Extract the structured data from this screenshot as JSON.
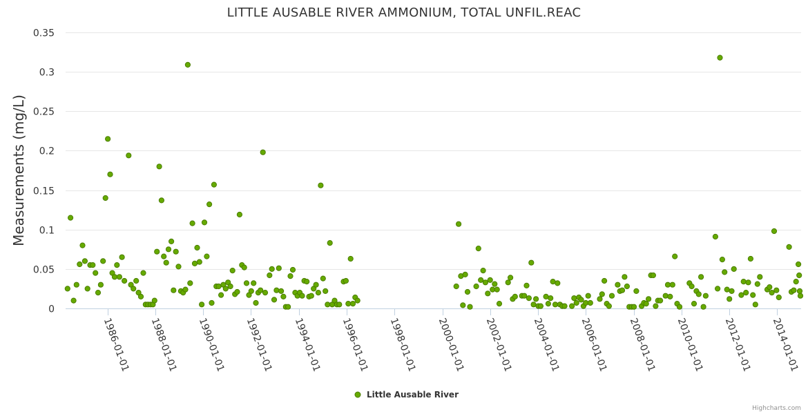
{
  "chart_data": {
    "type": "scatter",
    "title": "LITTLE AUSABLE RIVER AMMONIUM, TOTAL UNFIL.REAC",
    "xlabel": "",
    "ylabel": "Measurements (mg/L)",
    "x_type": "date",
    "xlim": [
      "1984-04-01",
      "2014-12-31"
    ],
    "ylim": [
      0,
      0.35
    ],
    "y_ticks": [
      0,
      0.05,
      0.1,
      0.15,
      0.2,
      0.25,
      0.3,
      0.35
    ],
    "y_tick_labels": [
      "0",
      "0.05",
      "0.1",
      "0.15",
      "0.2",
      "0.25",
      "0.3",
      "0.35"
    ],
    "x_ticks": [
      "1986-01-01",
      "1988-01-01",
      "1990-01-01",
      "1992-01-01",
      "1994-01-01",
      "1996-01-01",
      "1998-01-01",
      "2000-01-01",
      "2002-01-01",
      "2004-01-01",
      "2006-01-01",
      "2008-01-01",
      "2010-01-01",
      "2012-01-01",
      "2014-01-01"
    ],
    "grid": true,
    "legend_position": "bottom-center",
    "series": [
      {
        "name": "Little Ausable River",
        "color": "#66aa00",
        "points": [
          [
            "1984-05-01",
            0.025
          ],
          [
            "1984-06-15",
            0.115
          ],
          [
            "1984-08-01",
            0.01
          ],
          [
            "1984-09-15",
            0.03
          ],
          [
            "1984-11-01",
            0.056
          ],
          [
            "1984-12-15",
            0.08
          ],
          [
            "1985-01-20",
            0.06
          ],
          [
            "1985-03-01",
            0.025
          ],
          [
            "1985-04-10",
            0.055
          ],
          [
            "1985-05-20",
            0.055
          ],
          [
            "1985-07-01",
            0.045
          ],
          [
            "1985-08-10",
            0.02
          ],
          [
            "1985-09-20",
            0.03
          ],
          [
            "1985-10-25",
            0.06
          ],
          [
            "1985-12-01",
            0.14
          ],
          [
            "1986-01-05",
            0.215
          ],
          [
            "1986-02-10",
            0.17
          ],
          [
            "1986-03-15",
            0.045
          ],
          [
            "1986-04-20",
            0.04
          ],
          [
            "1986-05-25",
            0.055
          ],
          [
            "1986-07-01",
            0.04
          ],
          [
            "1986-08-10",
            0.065
          ],
          [
            "1986-09-15",
            0.035
          ],
          [
            "1986-11-20",
            0.194
          ],
          [
            "1986-12-25",
            0.03
          ],
          [
            "1987-02-01",
            0.025
          ],
          [
            "1987-03-15",
            0.035
          ],
          [
            "1987-04-20",
            0.02
          ],
          [
            "1987-05-25",
            0.015
          ],
          [
            "1987-07-01",
            0.045
          ],
          [
            "1987-08-05",
            0.005
          ],
          [
            "1987-09-10",
            0.005
          ],
          [
            "1987-10-20",
            0.005
          ],
          [
            "1987-11-25",
            0.005
          ],
          [
            "1987-12-20",
            0.01
          ],
          [
            "1988-01-25",
            0.072
          ],
          [
            "1988-03-01",
            0.18
          ],
          [
            "1988-04-05",
            0.137
          ],
          [
            "1988-05-10",
            0.066
          ],
          [
            "1988-06-15",
            0.058
          ],
          [
            "1988-07-20",
            0.075
          ],
          [
            "1988-09-01",
            0.085
          ],
          [
            "1988-10-05",
            0.023
          ],
          [
            "1988-11-10",
            0.072
          ],
          [
            "1988-12-20",
            0.053
          ],
          [
            "1989-01-25",
            0.022
          ],
          [
            "1989-03-01",
            0.02
          ],
          [
            "1989-04-05",
            0.024
          ],
          [
            "1989-05-10",
            0.309
          ],
          [
            "1989-06-15",
            0.032
          ],
          [
            "1989-07-20",
            0.108
          ],
          [
            "1989-08-25",
            0.057
          ],
          [
            "1989-10-01",
            0.077
          ],
          [
            "1989-11-05",
            0.059
          ],
          [
            "1989-12-10",
            0.005
          ],
          [
            "1990-01-20",
            0.109
          ],
          [
            "1990-02-25",
            0.066
          ],
          [
            "1990-04-05",
            0.132
          ],
          [
            "1990-05-10",
            0.007
          ],
          [
            "1990-06-15",
            0.157
          ],
          [
            "1990-07-20",
            0.028
          ],
          [
            "1990-08-25",
            0.028
          ],
          [
            "1990-10-01",
            0.017
          ],
          [
            "1990-11-05",
            0.03
          ],
          [
            "1990-12-10",
            0.025
          ],
          [
            "1991-01-15",
            0.033
          ],
          [
            "1991-02-20",
            0.028
          ],
          [
            "1991-03-25",
            0.048
          ],
          [
            "1991-05-01",
            0.018
          ],
          [
            "1991-06-05",
            0.021
          ],
          [
            "1991-07-10",
            0.119
          ],
          [
            "1991-08-15",
            0.055
          ],
          [
            "1991-09-20",
            0.052
          ],
          [
            "1991-10-25",
            0.032
          ],
          [
            "1991-12-01",
            0.017
          ],
          [
            "1992-01-05",
            0.022
          ],
          [
            "1992-02-10",
            0.032
          ],
          [
            "1992-03-15",
            0.007
          ],
          [
            "1992-04-20",
            0.02
          ],
          [
            "1992-05-25",
            0.023
          ],
          [
            "1992-07-01",
            0.198
          ],
          [
            "1992-08-05",
            0.02
          ],
          [
            "1992-10-10",
            0.042
          ],
          [
            "1992-11-15",
            0.05
          ],
          [
            "1992-12-20",
            0.011
          ],
          [
            "1993-01-25",
            0.023
          ],
          [
            "1993-03-01",
            0.051
          ],
          [
            "1993-04-05",
            0.022
          ],
          [
            "1993-05-10",
            0.015
          ],
          [
            "1993-06-15",
            0.002
          ],
          [
            "1993-07-20",
            0.002
          ],
          [
            "1993-08-25",
            0.041
          ],
          [
            "1993-10-01",
            0.049
          ],
          [
            "1993-11-05",
            0.02
          ],
          [
            "1993-12-10",
            0.016
          ],
          [
            "1994-01-15",
            0.02
          ],
          [
            "1994-02-20",
            0.016
          ],
          [
            "1994-03-25",
            0.035
          ],
          [
            "1994-05-01",
            0.034
          ],
          [
            "1994-06-05",
            0.015
          ],
          [
            "1994-07-10",
            0.016
          ],
          [
            "1994-08-15",
            0.025
          ],
          [
            "1994-09-20",
            0.03
          ],
          [
            "1994-10-25",
            0.02
          ],
          [
            "1994-12-01",
            0.156
          ],
          [
            "1995-01-05",
            0.038
          ],
          [
            "1995-02-10",
            0.022
          ],
          [
            "1995-03-15",
            0.005
          ],
          [
            "1995-04-20",
            0.083
          ],
          [
            "1995-05-25",
            0.005
          ],
          [
            "1995-07-01",
            0.01
          ],
          [
            "1995-08-05",
            0.005
          ],
          [
            "1995-09-10",
            0.005
          ],
          [
            "1995-11-15",
            0.034
          ],
          [
            "1995-12-20",
            0.035
          ],
          [
            "1996-01-25",
            0.006
          ],
          [
            "1996-03-01",
            0.063
          ],
          [
            "1996-04-05",
            0.006
          ],
          [
            "1996-05-10",
            0.014
          ],
          [
            "1996-06-15",
            0.01
          ],
          [
            "2000-08-01",
            0.028
          ],
          [
            "2000-09-05",
            0.107
          ],
          [
            "2000-10-10",
            0.041
          ],
          [
            "2000-11-10",
            0.004
          ],
          [
            "2000-12-15",
            0.043
          ],
          [
            "2001-01-20",
            0.021
          ],
          [
            "2001-02-25",
            0.002
          ],
          [
            "2001-06-01",
            0.028
          ],
          [
            "2001-07-05",
            0.076
          ],
          [
            "2001-08-10",
            0.036
          ],
          [
            "2001-09-15",
            0.048
          ],
          [
            "2001-10-20",
            0.033
          ],
          [
            "2001-11-25",
            0.019
          ],
          [
            "2001-12-30",
            0.036
          ],
          [
            "2002-02-05",
            0.024
          ],
          [
            "2002-03-10",
            0.031
          ],
          [
            "2002-04-15",
            0.024
          ],
          [
            "2002-05-20",
            0.006
          ],
          [
            "2002-10-01",
            0.033
          ],
          [
            "2002-11-05",
            0.039
          ],
          [
            "2002-12-10",
            0.012
          ],
          [
            "2003-01-15",
            0.015
          ],
          [
            "2003-05-01",
            0.016
          ],
          [
            "2003-06-05",
            0.016
          ],
          [
            "2003-07-10",
            0.029
          ],
          [
            "2003-08-15",
            0.013
          ],
          [
            "2003-09-20",
            0.058
          ],
          [
            "2003-10-25",
            0.005
          ],
          [
            "2003-12-01",
            0.012
          ],
          [
            "2004-01-05",
            0.003
          ],
          [
            "2004-02-10",
            0.003
          ],
          [
            "2004-05-01",
            0.015
          ],
          [
            "2004-06-05",
            0.006
          ],
          [
            "2004-07-10",
            0.013
          ],
          [
            "2004-08-15",
            0.034
          ],
          [
            "2004-09-20",
            0.005
          ],
          [
            "2004-10-25",
            0.032
          ],
          [
            "2004-12-01",
            0.005
          ],
          [
            "2005-01-05",
            0.003
          ],
          [
            "2005-02-10",
            0.003
          ],
          [
            "2005-06-01",
            0.003
          ],
          [
            "2005-07-05",
            0.013
          ],
          [
            "2005-08-10",
            0.007
          ],
          [
            "2005-09-15",
            0.014
          ],
          [
            "2005-10-20",
            0.011
          ],
          [
            "2005-11-25",
            0.003
          ],
          [
            "2005-12-30",
            0.007
          ],
          [
            "2006-02-05",
            0.016
          ],
          [
            "2006-03-10",
            0.007
          ],
          [
            "2006-08-01",
            0.012
          ],
          [
            "2006-09-05",
            0.018
          ],
          [
            "2006-10-10",
            0.035
          ],
          [
            "2006-11-15",
            0.006
          ],
          [
            "2006-12-20",
            0.003
          ],
          [
            "2007-02-01",
            0.016
          ],
          [
            "2007-05-01",
            0.03
          ],
          [
            "2007-06-05",
            0.022
          ],
          [
            "2007-07-10",
            0.023
          ],
          [
            "2007-08-15",
            0.04
          ],
          [
            "2007-09-20",
            0.028
          ],
          [
            "2007-10-25",
            0.002
          ],
          [
            "2007-12-01",
            0.002
          ],
          [
            "2008-01-05",
            0.002
          ],
          [
            "2008-02-10",
            0.022
          ],
          [
            "2008-05-01",
            0.003
          ],
          [
            "2008-06-05",
            0.007
          ],
          [
            "2008-07-10",
            0.006
          ],
          [
            "2008-08-15",
            0.012
          ],
          [
            "2008-09-20",
            0.042
          ],
          [
            "2008-10-25",
            0.042
          ],
          [
            "2008-12-01",
            0.003
          ],
          [
            "2009-01-05",
            0.01
          ],
          [
            "2009-02-10",
            0.01
          ],
          [
            "2009-05-01",
            0.016
          ],
          [
            "2009-06-05",
            0.03
          ],
          [
            "2009-07-10",
            0.015
          ],
          [
            "2009-08-15",
            0.03
          ],
          [
            "2009-09-20",
            0.066
          ],
          [
            "2009-10-25",
            0.006
          ],
          [
            "2009-12-01",
            0.002
          ],
          [
            "2010-05-01",
            0.032
          ],
          [
            "2010-06-05",
            0.028
          ],
          [
            "2010-07-10",
            0.006
          ],
          [
            "2010-08-15",
            0.022
          ],
          [
            "2010-09-20",
            0.018
          ],
          [
            "2010-10-25",
            0.04
          ],
          [
            "2010-12-01",
            0.002
          ],
          [
            "2011-01-05",
            0.016
          ],
          [
            "2011-06-01",
            0.091
          ],
          [
            "2011-07-05",
            0.025
          ],
          [
            "2011-08-10",
            0.318
          ],
          [
            "2011-09-15",
            0.062
          ],
          [
            "2011-10-20",
            0.046
          ],
          [
            "2011-11-25",
            0.024
          ],
          [
            "2012-01-01",
            0.012
          ],
          [
            "2012-02-05",
            0.022
          ],
          [
            "2012-03-10",
            0.05
          ],
          [
            "2012-07-01",
            0.017
          ],
          [
            "2012-08-05",
            0.034
          ],
          [
            "2012-09-10",
            0.02
          ],
          [
            "2012-10-15",
            0.033
          ],
          [
            "2012-11-20",
            0.063
          ],
          [
            "2012-12-25",
            0.017
          ],
          [
            "2013-02-01",
            0.005
          ],
          [
            "2013-03-05",
            0.031
          ],
          [
            "2013-04-10",
            0.04
          ],
          [
            "2013-08-01",
            0.024
          ],
          [
            "2013-09-05",
            0.027
          ],
          [
            "2013-10-10",
            0.02
          ],
          [
            "2013-11-15",
            0.098
          ],
          [
            "2013-12-20",
            0.023
          ],
          [
            "2014-01-25",
            0.014
          ],
          [
            "2014-07-01",
            0.078
          ],
          [
            "2014-08-05",
            0.021
          ],
          [
            "2014-09-10",
            0.023
          ],
          [
            "2014-10-15",
            0.034
          ],
          [
            "2014-11-20",
            0.056
          ],
          [
            "2014-12-01",
            0.042
          ],
          [
            "2014-12-10",
            0.022
          ],
          [
            "2014-12-20",
            0.016
          ]
        ]
      }
    ]
  },
  "credits": "Highcharts.com"
}
